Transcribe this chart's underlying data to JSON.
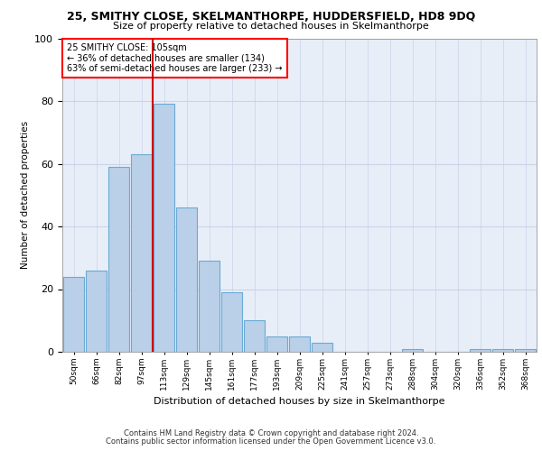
{
  "title1": "25, SMITHY CLOSE, SKELMANTHORPE, HUDDERSFIELD, HD8 9DQ",
  "title2": "Size of property relative to detached houses in Skelmanthorpe",
  "xlabel": "Distribution of detached houses by size in Skelmanthorpe",
  "ylabel": "Number of detached properties",
  "annotation_line1": "25 SMITHY CLOSE: 105sqm",
  "annotation_line2": "← 36% of detached houses are smaller (134)",
  "annotation_line3": "63% of semi-detached houses are larger (233) →",
  "bar_color": "#bad0e8",
  "bar_edge_color": "#6aaad4",
  "bar_line_color": "#cc0000",
  "grid_color": "#c8d4e8",
  "plot_bg_color": "#e8eef8",
  "categories": [
    "50sqm",
    "66sqm",
    "82sqm",
    "97sqm",
    "113sqm",
    "129sqm",
    "145sqm",
    "161sqm",
    "177sqm",
    "193sqm",
    "209sqm",
    "225sqm",
    "241sqm",
    "257sqm",
    "273sqm",
    "288sqm",
    "304sqm",
    "320sqm",
    "336sqm",
    "352sqm",
    "368sqm"
  ],
  "values": [
    24,
    26,
    59,
    63,
    79,
    46,
    29,
    19,
    10,
    5,
    5,
    3,
    0,
    0,
    0,
    1,
    0,
    0,
    1,
    1,
    1
  ],
  "ylim": [
    0,
    100
  ],
  "footer1": "Contains HM Land Registry data © Crown copyright and database right 2024.",
  "footer2": "Contains public sector information licensed under the Open Government Licence v3.0."
}
